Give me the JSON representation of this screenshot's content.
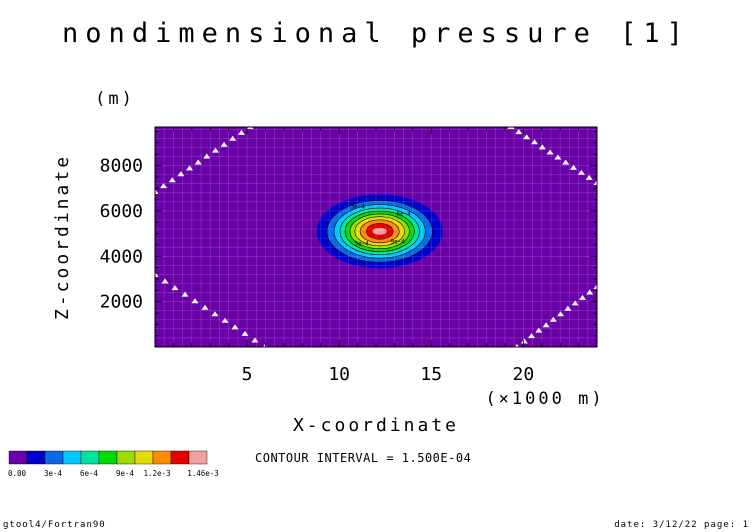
{
  "chart_data": {
    "type": "heatmap",
    "title": "nondimensional pressure [1]",
    "xlabel": "X-coordinate",
    "x_unit": "(×1000 m)",
    "ylabel": "Z-coordinate",
    "y_unit": "(m)",
    "xlim": [
      0,
      24
    ],
    "ylim": [
      0,
      9700
    ],
    "x_ticks": [
      5,
      10,
      15,
      20
    ],
    "y_ticks": [
      2000,
      4000,
      6000,
      8000
    ],
    "field": {
      "shape": "gaussian bubble",
      "center_x": 12.2,
      "center_z": 5100,
      "peak": 0.0015,
      "background": 0.0
    },
    "contour_interval_text": "CONTOUR INTERVAL = 1.500E-04",
    "contour_labels": [
      "3e-4",
      "6e-4",
      "9e-4",
      "3e-4"
    ],
    "colorbar": {
      "colors": [
        "#6a00a8",
        "#0000cd",
        "#0a6ae6",
        "#00c8ff",
        "#00e4a0",
        "#00dc00",
        "#9cdc00",
        "#e6dc00",
        "#ff8c00",
        "#e60000",
        "#f5a0a0"
      ],
      "levels": [
        0.0,
        0.00015,
        0.0003,
        0.00045,
        0.0006,
        0.00075,
        0.0009,
        0.00105,
        0.0012,
        0.00135
      ],
      "tick_labels": [
        "0.00",
        "3e-4",
        "6e-4",
        "9e-4",
        "1.2e-3",
        "1.46e-3"
      ]
    }
  },
  "footer": {
    "left": "gtool4/Fortran90",
    "right": "date: 3/12/22 page: 1"
  }
}
